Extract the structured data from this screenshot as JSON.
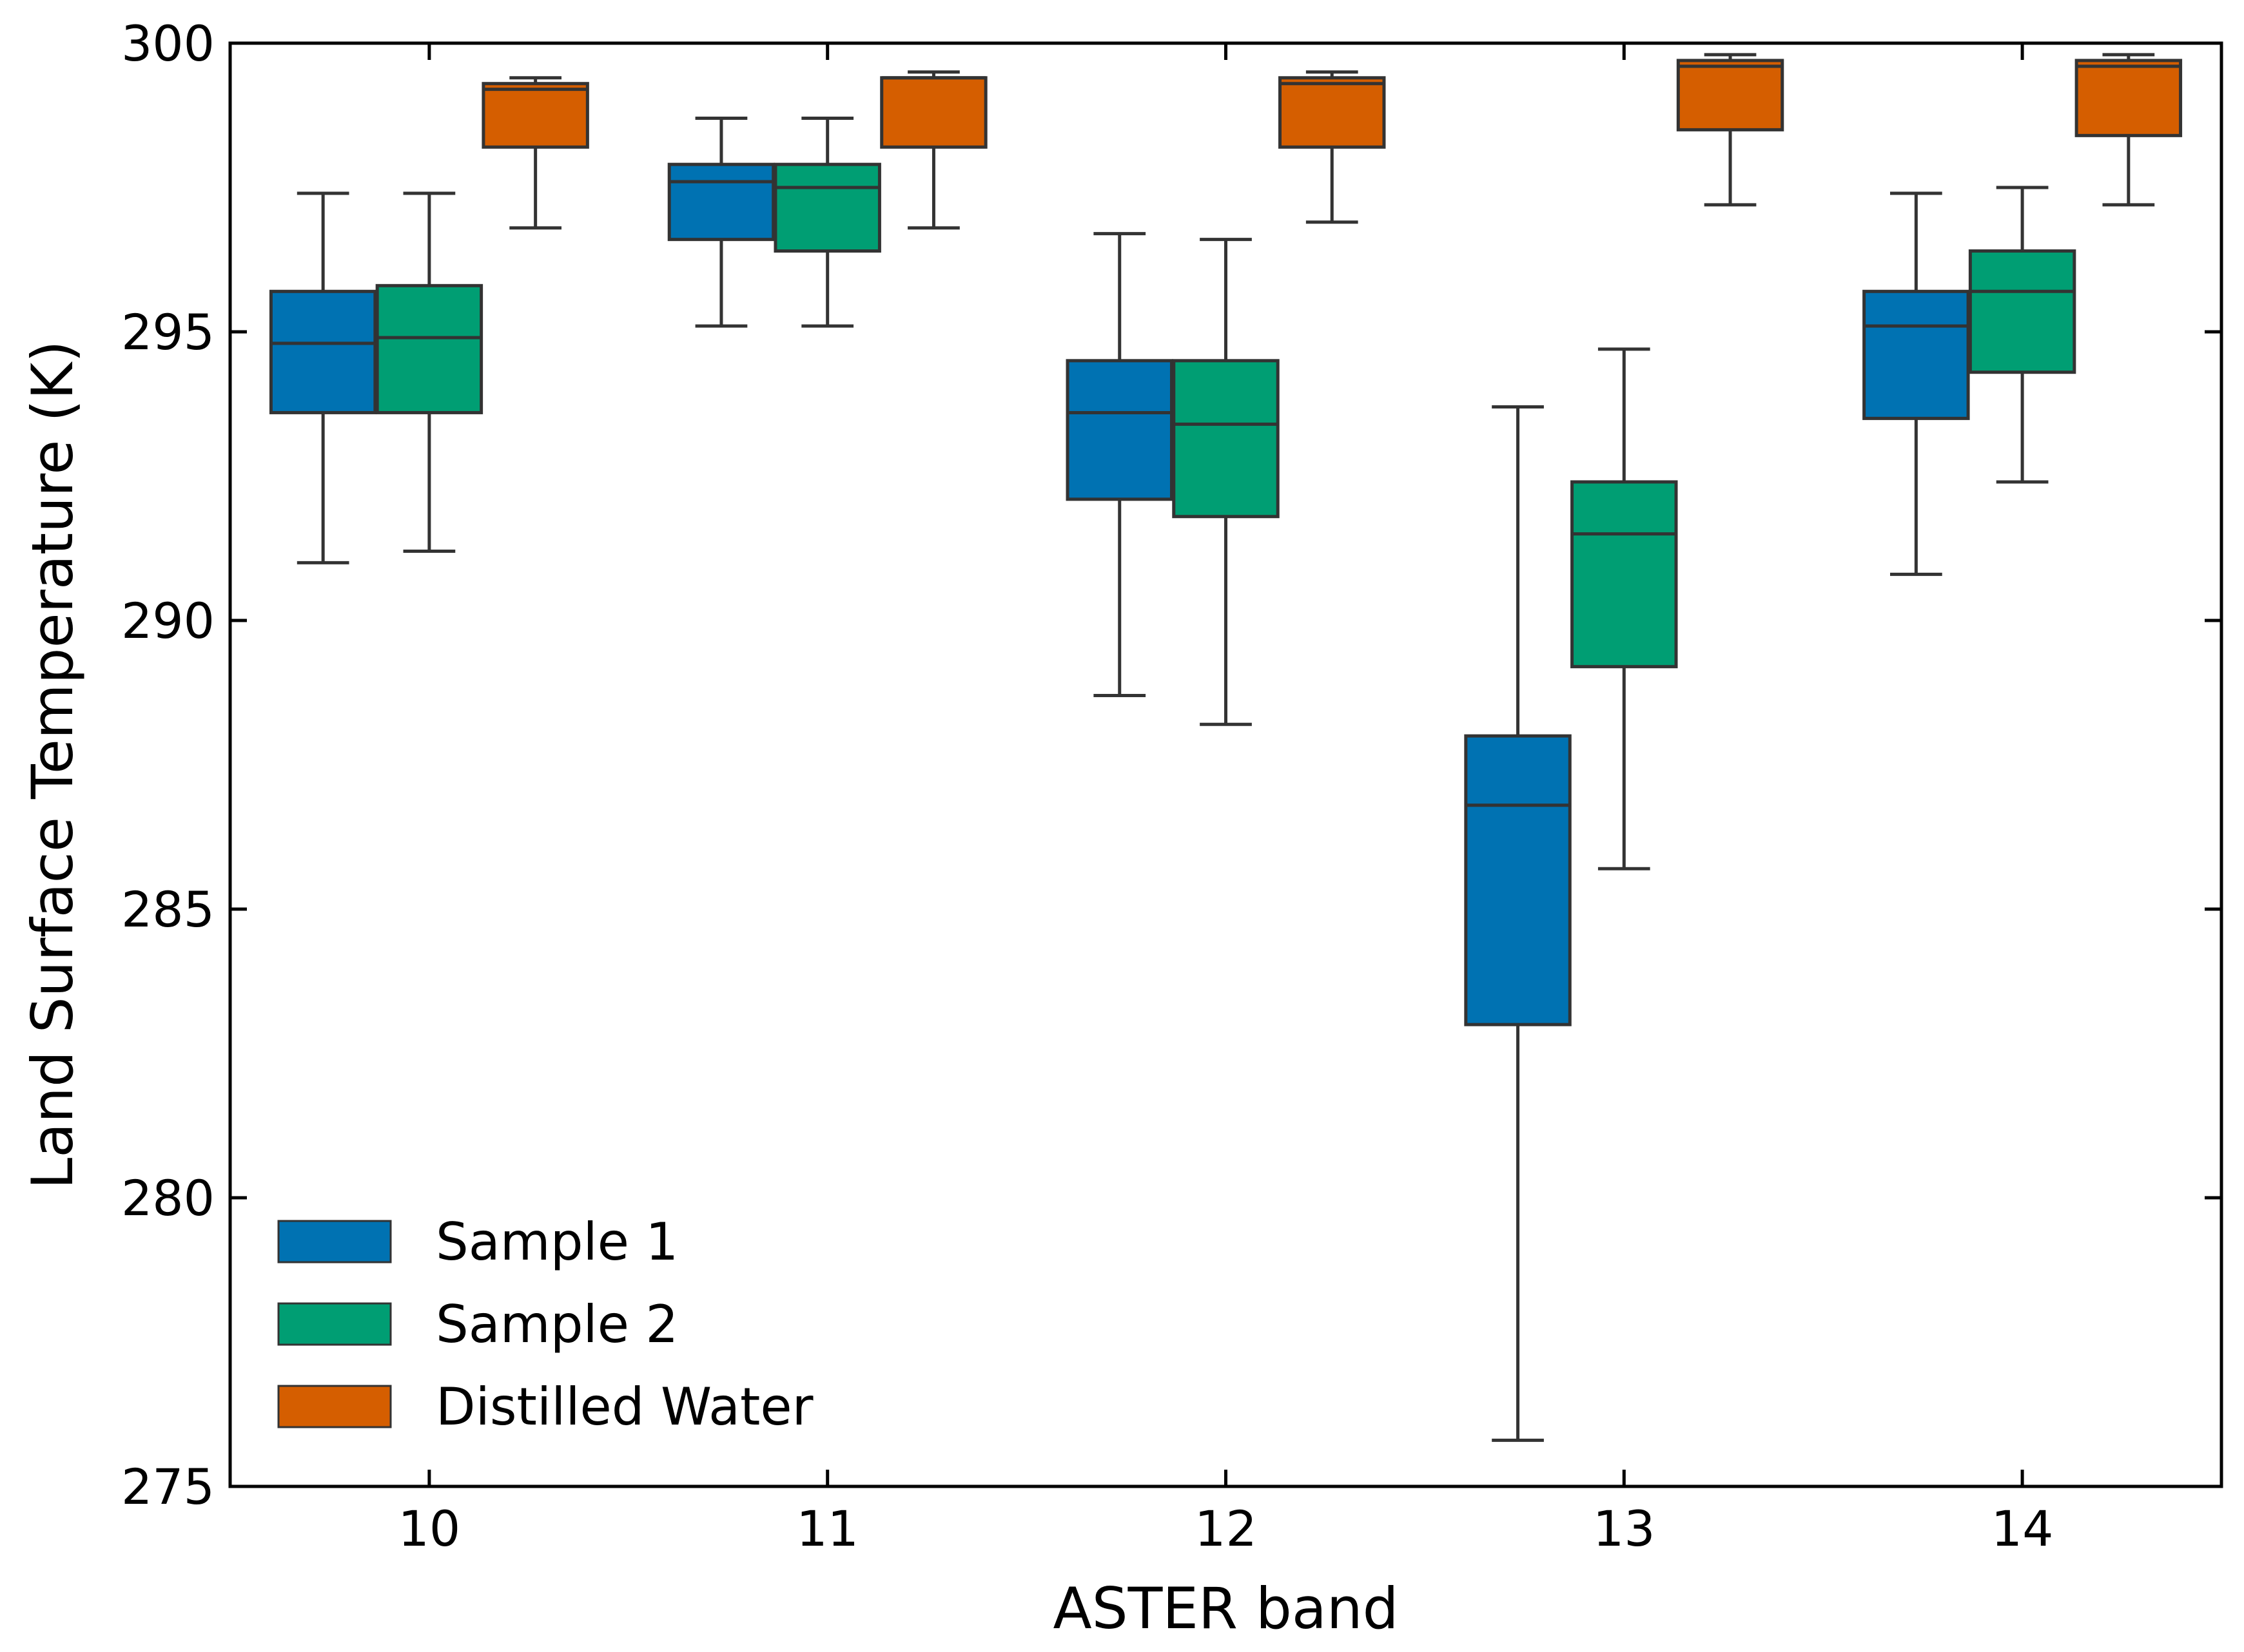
{
  "chart_data": {
    "type": "box",
    "title": "",
    "xlabel": "ASTER band",
    "ylabel": "Land Surface Temperature (K)",
    "ylim": [
      275,
      300
    ],
    "yticks": [
      275,
      280,
      285,
      290,
      295,
      300
    ],
    "categories": [
      "10",
      "11",
      "12",
      "13",
      "14"
    ],
    "legend_position": "lower-left",
    "series": [
      {
        "name": "Sample 1",
        "color": "#0072b2",
        "boxes": [
          {
            "whisker_low": 291.0,
            "q1": 293.6,
            "median": 294.8,
            "q3": 295.7,
            "whisker_high": 297.4
          },
          {
            "whisker_low": 295.1,
            "q1": 296.6,
            "median": 297.6,
            "q3": 297.9,
            "whisker_high": 298.7
          },
          {
            "whisker_low": 288.7,
            "q1": 292.1,
            "median": 293.6,
            "q3": 294.5,
            "whisker_high": 296.7
          },
          {
            "whisker_low": 275.8,
            "q1": 283.0,
            "median": 286.8,
            "q3": 288.0,
            "whisker_high": 293.7
          },
          {
            "whisker_low": 290.8,
            "q1": 293.5,
            "median": 295.1,
            "q3": 295.7,
            "whisker_high": 297.4
          }
        ]
      },
      {
        "name": "Sample 2",
        "color": "#009e73",
        "boxes": [
          {
            "whisker_low": 291.2,
            "q1": 293.6,
            "median": 294.9,
            "q3": 295.8,
            "whisker_high": 297.4
          },
          {
            "whisker_low": 295.1,
            "q1": 296.4,
            "median": 297.5,
            "q3": 297.9,
            "whisker_high": 298.7
          },
          {
            "whisker_low": 288.2,
            "q1": 291.8,
            "median": 293.4,
            "q3": 294.5,
            "whisker_high": 296.6
          },
          {
            "whisker_low": 285.7,
            "q1": 289.2,
            "median": 291.5,
            "q3": 292.4,
            "whisker_high": 294.7
          },
          {
            "whisker_low": 292.4,
            "q1": 294.3,
            "median": 295.7,
            "q3": 296.4,
            "whisker_high": 297.5
          }
        ]
      },
      {
        "name": "Distilled Water",
        "color": "#d55e00",
        "boxes": [
          {
            "whisker_low": 296.8,
            "q1": 298.2,
            "median": 299.2,
            "q3": 299.3,
            "whisker_high": 299.4
          },
          {
            "whisker_low": 296.8,
            "q1": 298.2,
            "median": 299.4,
            "q3": 299.4,
            "whisker_high": 299.5
          },
          {
            "whisker_low": 296.9,
            "q1": 298.2,
            "median": 299.3,
            "q3": 299.4,
            "whisker_high": 299.5
          },
          {
            "whisker_low": 297.2,
            "q1": 298.5,
            "median": 299.6,
            "q3": 299.7,
            "whisker_high": 299.8
          },
          {
            "whisker_low": 297.2,
            "q1": 298.4,
            "median": 299.6,
            "q3": 299.7,
            "whisker_high": 299.8
          }
        ]
      }
    ]
  }
}
